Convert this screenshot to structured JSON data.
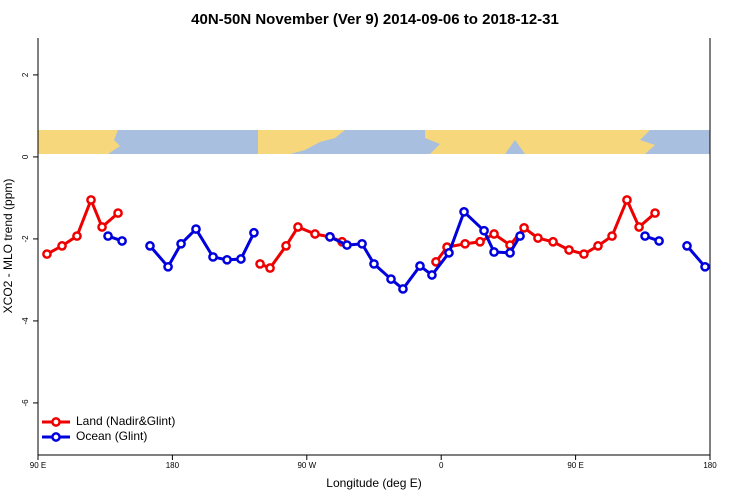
{
  "chart_data": {
    "type": "line",
    "title": "40N-50N November (Ver 9)   2014-09-06 to 2018-12-31",
    "x_label": "Longitude (deg E)",
    "y_label": "XCO2 - MLO trend (ppm)",
    "xlim": [
      90,
      540
    ],
    "ylim": [
      -7.27,
      2.9
    ],
    "xticks": [
      {
        "value": 90,
        "label": "90 E"
      },
      180,
      {
        "value": 270,
        "label": "90 W"
      },
      {
        "value": 360,
        "label": "0"
      },
      {
        "value": 450,
        "label": "90 E"
      },
      {
        "value": 540,
        "label": "180"
      }
    ],
    "yticks": [
      -6,
      -4,
      -2,
      0,
      2
    ],
    "legend": "bottom-left",
    "series": [
      {
        "name": "Land (Nadir&Glint)",
        "color": "#ee0000",
        "x": [
          96.0,
          106.1,
          116.1,
          125.5,
          132.9,
          143.6,
          null,
          238.7,
          245.4,
          256.1,
          264.1,
          275.5,
          285.5,
          293.6,
          null,
          356.5,
          363.9,
          376.0,
          386.0,
          395.4,
          406.1,
          415.5,
          424.8,
          434.9,
          445.6,
          455.6,
          465.0,
          474.4,
          484.4,
          492.5,
          503.2
        ],
        "values": [
          -2.37,
          -2.17,
          -1.93,
          -1.05,
          -1.71,
          -1.37,
          null,
          -2.61,
          -2.71,
          -2.17,
          -1.71,
          -1.88,
          -1.95,
          -2.07,
          null,
          -2.56,
          -2.2,
          -2.12,
          -2.07,
          -1.88,
          -2.15,
          -1.73,
          -1.98,
          -2.07,
          -2.27,
          -2.37,
          -2.17,
          -1.93,
          -1.05,
          -1.71,
          -1.37
        ]
      },
      {
        "name": "Ocean (Glint)",
        "color": "#0000dd",
        "x": [
          136.9,
          146.3,
          null,
          165.0,
          177.1,
          185.8,
          195.8,
          207.2,
          216.6,
          225.9,
          234.6,
          null,
          285.5,
          296.9,
          307.0,
          315.0,
          326.4,
          334.4,
          345.8,
          353.8,
          365.2,
          375.3,
          388.7,
          395.4,
          406.1,
          412.8,
          null,
          496.5,
          505.9,
          null,
          524.6,
          536.7
        ],
        "values": [
          -1.93,
          -2.05,
          null,
          -2.17,
          -2.68,
          -2.12,
          -1.76,
          -2.44,
          -2.51,
          -2.49,
          -1.85,
          null,
          -1.95,
          -2.15,
          -2.12,
          -2.61,
          -2.98,
          -3.22,
          -2.66,
          -2.88,
          -2.34,
          -1.34,
          -1.8,
          -2.32,
          -2.34,
          -1.93,
          null,
          -1.93,
          -2.05,
          null,
          -2.17,
          -2.68
        ]
      }
    ]
  }
}
